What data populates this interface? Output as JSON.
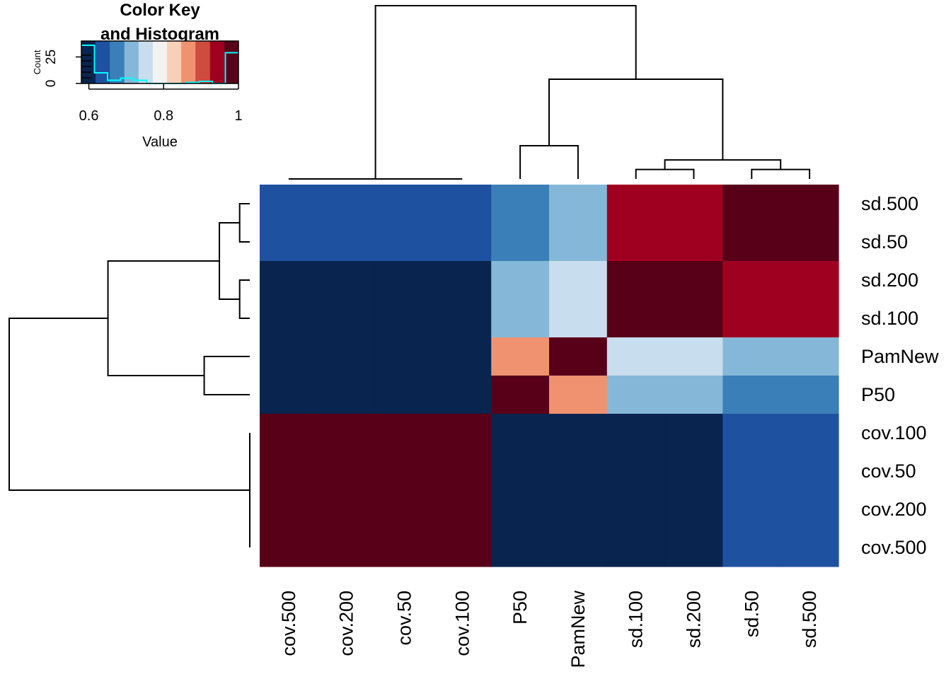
{
  "chart_data": {
    "type": "heatmap",
    "title": "",
    "row_labels": [
      "sd.500",
      "sd.50",
      "sd.200",
      "sd.100",
      "PamNew",
      "P50",
      "cov.100",
      "cov.50",
      "cov.200",
      "cov.500"
    ],
    "col_labels": [
      "cov.500",
      "cov.200",
      "cov.50",
      "cov.100",
      "P50",
      "PamNew",
      "sd.100",
      "sd.200",
      "sd.50",
      "sd.500"
    ],
    "values": [
      [
        0.63,
        0.63,
        0.63,
        0.63,
        0.68,
        0.71,
        0.96,
        0.96,
        1.0,
        1.0
      ],
      [
        0.63,
        0.63,
        0.63,
        0.63,
        0.68,
        0.71,
        0.96,
        0.96,
        1.0,
        1.0
      ],
      [
        0.6,
        0.6,
        0.6,
        0.6,
        0.71,
        0.75,
        1.0,
        1.0,
        0.96,
        0.96
      ],
      [
        0.6,
        0.6,
        0.6,
        0.6,
        0.71,
        0.75,
        1.0,
        1.0,
        0.96,
        0.96
      ],
      [
        0.6,
        0.6,
        0.6,
        0.6,
        0.86,
        1.0,
        0.75,
        0.75,
        0.71,
        0.71
      ],
      [
        0.6,
        0.6,
        0.6,
        0.6,
        1.0,
        0.86,
        0.71,
        0.71,
        0.68,
        0.68
      ],
      [
        1.0,
        1.0,
        1.0,
        1.0,
        0.6,
        0.6,
        0.6,
        0.6,
        0.63,
        0.63
      ],
      [
        1.0,
        1.0,
        1.0,
        1.0,
        0.6,
        0.6,
        0.6,
        0.6,
        0.63,
        0.63
      ],
      [
        1.0,
        1.0,
        1.0,
        1.0,
        0.6,
        0.6,
        0.6,
        0.6,
        0.63,
        0.63
      ],
      [
        1.0,
        1.0,
        1.0,
        1.0,
        0.6,
        0.6,
        0.6,
        0.6,
        0.63,
        0.63
      ]
    ],
    "color_scale": {
      "breaks": [
        0.58,
        0.618,
        0.656,
        0.695,
        0.733,
        0.771,
        0.809,
        0.847,
        0.885,
        0.924,
        0.962,
        1.0
      ],
      "colors": [
        "#08244F",
        "#1E52A0",
        "#3A7FB7",
        "#85B8D8",
        "#C8DDEE",
        "#F2F2F2",
        "#FACFB8",
        "#F09270",
        "#CD4B3F",
        "#A00020",
        "#590019"
      ]
    },
    "color_key": {
      "title_line1": "Color Key",
      "title_line2": "and Histogram",
      "xlabel": "Value",
      "ylabel": "Count",
      "x_ticks": [
        "0.6",
        "0.8",
        "1"
      ],
      "x_tick_values": [
        0.6,
        0.8,
        1.0
      ],
      "y_ticks": [
        "0",
        "25"
      ],
      "y_tick_values": [
        0,
        25
      ],
      "ylim": [
        0,
        40
      ],
      "histogram_counts": [
        36,
        10,
        3,
        5,
        3,
        0,
        0,
        0,
        1,
        2,
        0,
        29
      ],
      "histogram_color": "#00FFFF"
    },
    "col_dendrogram": [
      {
        "left": "sd.100",
        "right": "sd.200",
        "height": 0.04
      },
      {
        "left": "sd.50",
        "right": "sd.500",
        "height": 0.04
      },
      {
        "left": "P50",
        "right": "PamNew",
        "height": 0.14
      },
      {
        "left": "sd.100+sd.200",
        "right": "sd.50+sd.500",
        "height": 0.08
      },
      {
        "left": "P50+PamNew",
        "right": "sd",
        "height": 0.42
      },
      {
        "left": "cov",
        "right": "P50+PamNew+sd",
        "height": 0.73
      }
    ],
    "row_dendrogram": [
      {
        "left": "sd.500",
        "right": "sd.50",
        "height": 0.04
      },
      {
        "left": "sd.200",
        "right": "sd.100",
        "height": 0.04
      },
      {
        "left": "PamNew",
        "right": "P50",
        "height": 0.18
      },
      {
        "left": "sd.500+sd.50",
        "right": "sd.200+sd.100",
        "height": 0.12
      },
      {
        "left": "sd",
        "right": "PamNew+P50",
        "height": 0.56
      },
      {
        "left": "sd+PamNew+P50",
        "right": "cov",
        "height": 0.95
      }
    ]
  }
}
